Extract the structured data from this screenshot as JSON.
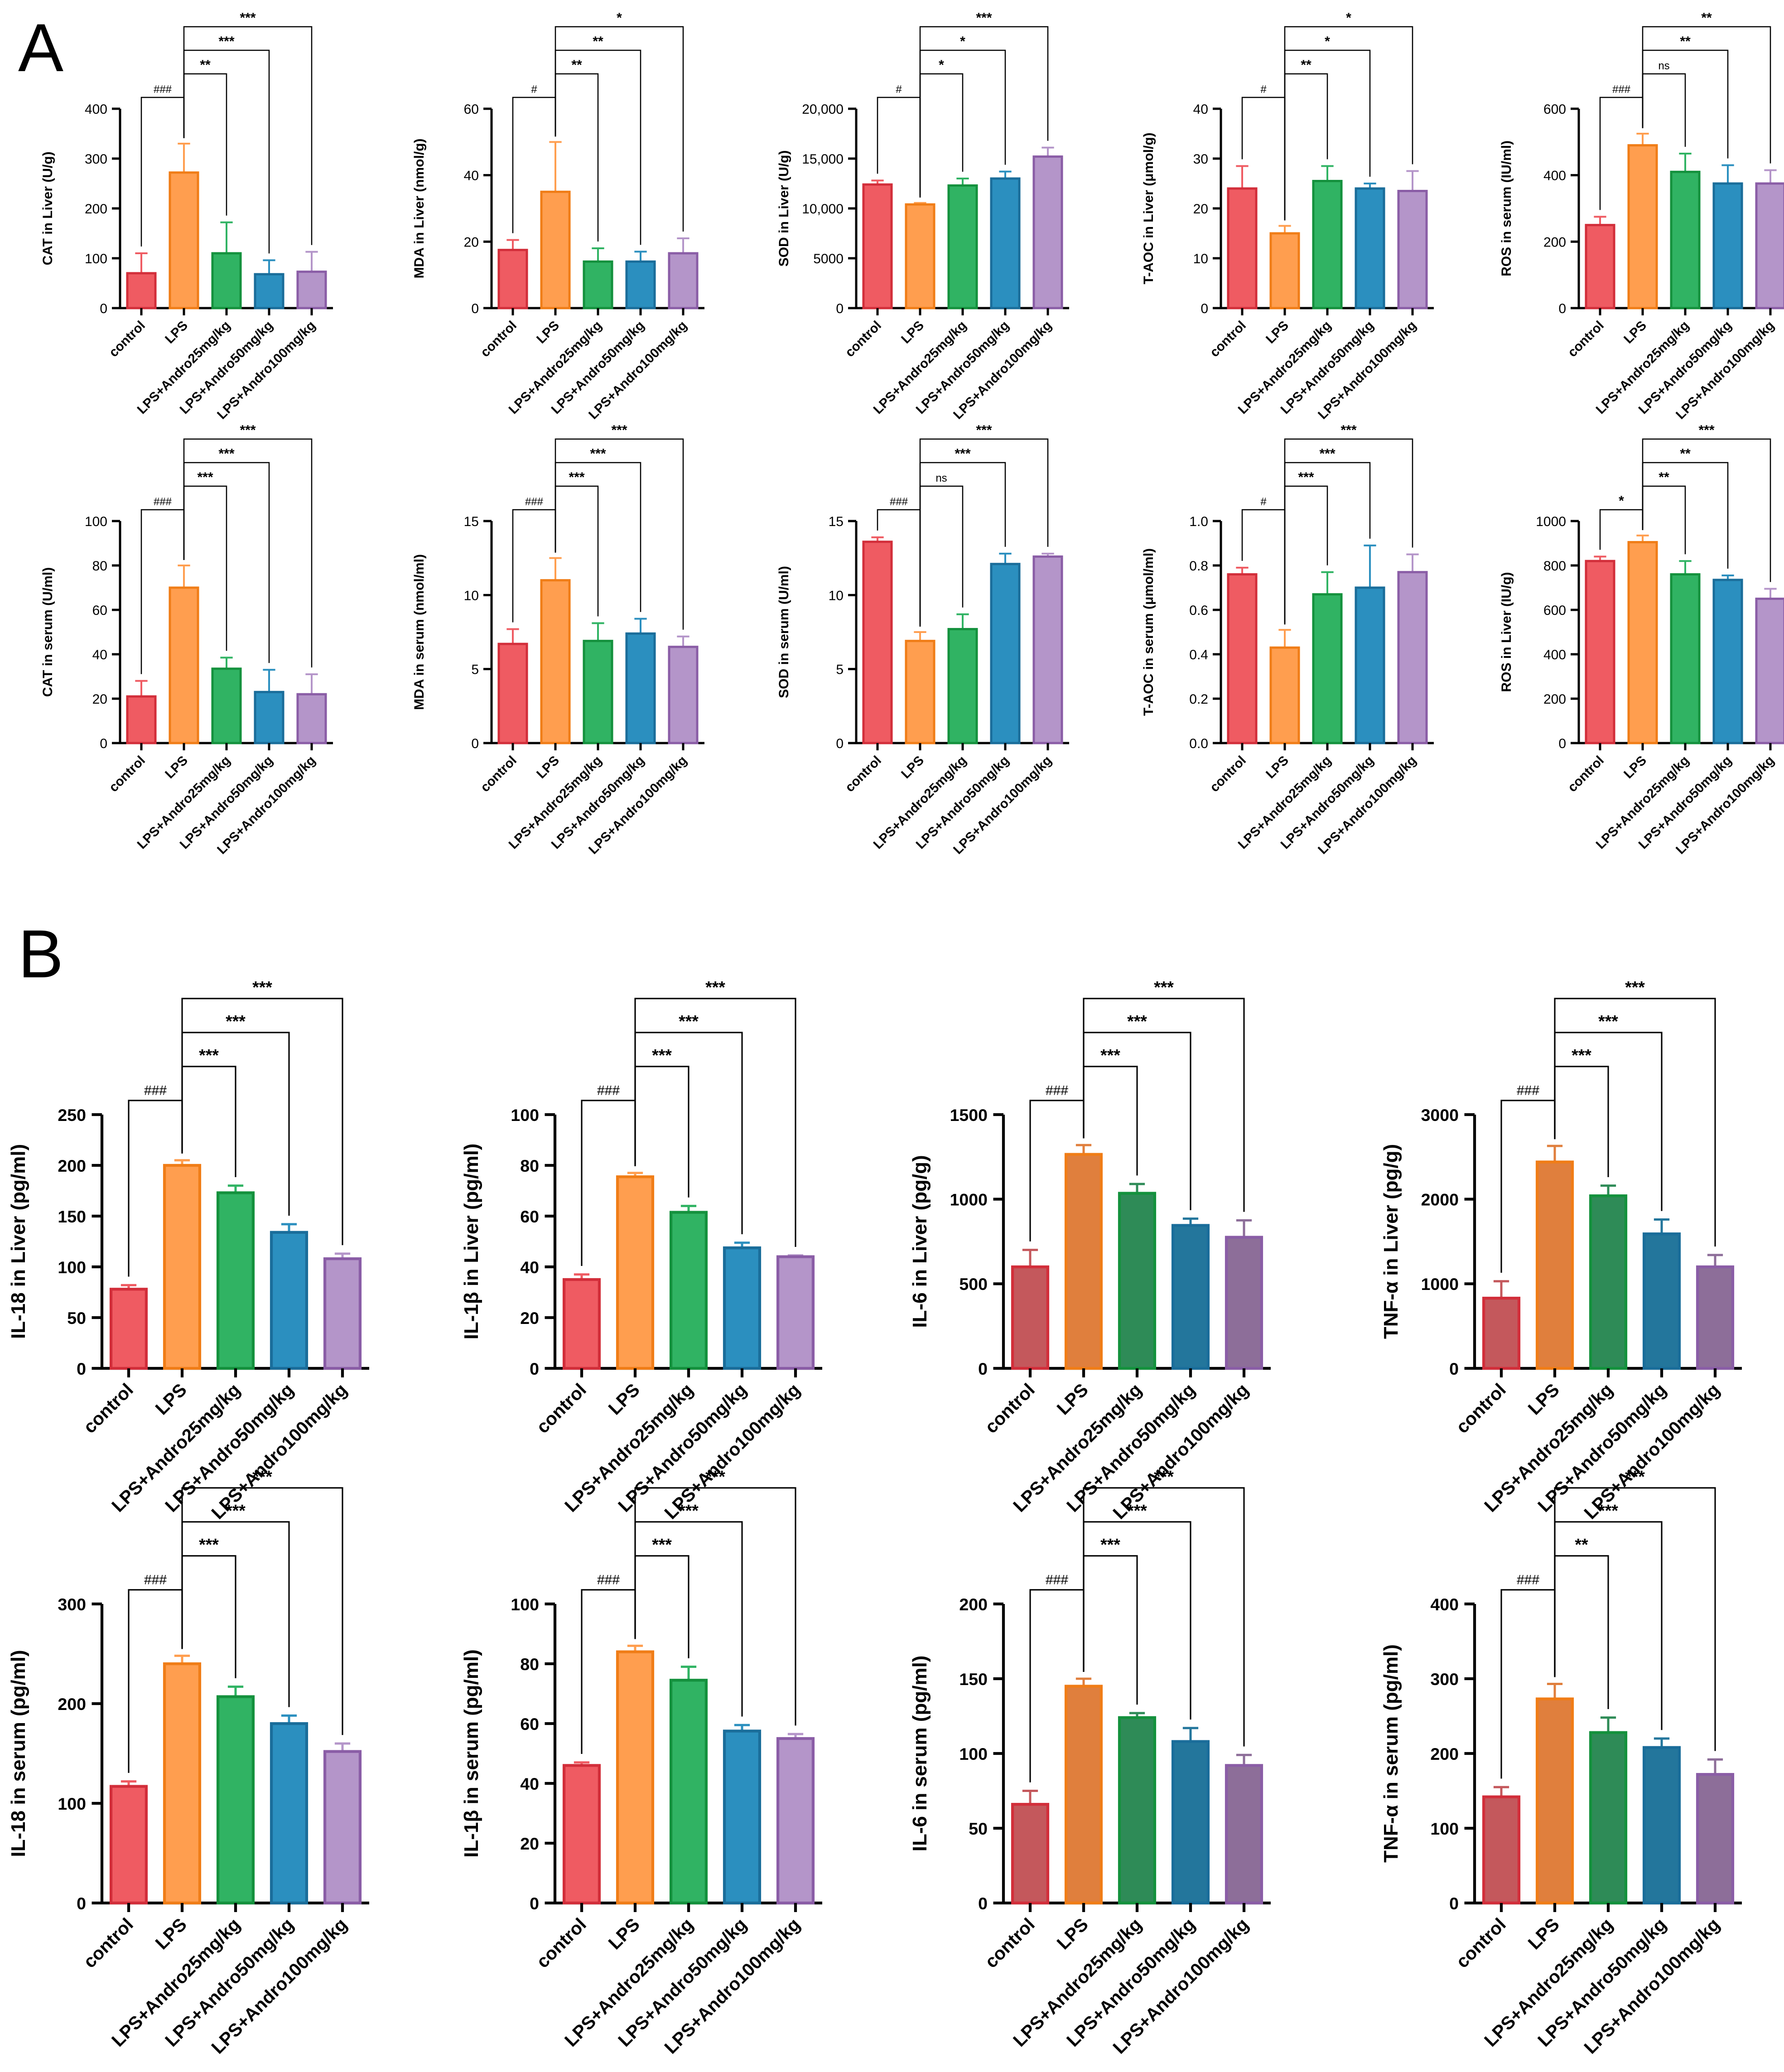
{
  "panels": [
    {
      "label": "A"
    },
    {
      "label": "B"
    }
  ],
  "palette": {
    "bright": [
      "#EF5B62",
      "#FF9E4F",
      "#30B363",
      "#2B8FBF",
      "#B495C9"
    ],
    "dark": [
      "#C4585C",
      "#E07F3D",
      "#2E8B57",
      "#23769C",
      "#8D6E99"
    ],
    "edge": [
      "#D22E3A",
      "#F07D17",
      "#14913D",
      "#1A6D9A",
      "#8A5DA6"
    ]
  },
  "chart_data": [
    {
      "type": "bar",
      "ylabel": "CAT in Liver (U/g)",
      "categories": [
        "control",
        "LPS",
        "LPS+Andro25mg/kg",
        "LPS+Andro50mg/kg",
        "LPS+Andro100mg/kg"
      ],
      "values": [
        70,
        272,
        110,
        68,
        73
      ],
      "errors": [
        40,
        58,
        62,
        28,
        40
      ],
      "ylim": [
        0,
        400
      ],
      "yticks": [
        0,
        100,
        200,
        300,
        400
      ],
      "significance": [
        {
          "from": 0,
          "to": 1,
          "label": "###"
        },
        {
          "from": 1,
          "to": 2,
          "label": "**"
        },
        {
          "from": 1,
          "to": 3,
          "label": "***"
        },
        {
          "from": 1,
          "to": 4,
          "label": "***"
        }
      ]
    },
    {
      "type": "bar",
      "ylabel": "MDA in Liver (nmol/g)",
      "categories": [
        "control",
        "LPS",
        "LPS+Andro25mg/kg",
        "LPS+Andro50mg/kg",
        "LPS+Andro100mg/kg"
      ],
      "values": [
        17.5,
        35,
        14,
        14,
        16.5
      ],
      "errors": [
        3,
        15,
        4,
        3,
        4.5
      ],
      "ylim": [
        0,
        60
      ],
      "yticks": [
        0,
        20,
        40,
        60
      ],
      "significance": [
        {
          "from": 0,
          "to": 1,
          "label": "#"
        },
        {
          "from": 1,
          "to": 2,
          "label": "**"
        },
        {
          "from": 1,
          "to": 3,
          "label": "**"
        },
        {
          "from": 1,
          "to": 4,
          "label": "*"
        }
      ]
    },
    {
      "type": "bar",
      "ylabel": "SOD in Liver (U/g)",
      "categories": [
        "control",
        "LPS",
        "LPS+Andro25mg/kg",
        "LPS+Andro50mg/kg",
        "LPS+Andro100mg/kg"
      ],
      "values": [
        12400,
        10400,
        12300,
        13000,
        15200
      ],
      "errors": [
        400,
        150,
        700,
        700,
        900
      ],
      "ylim": [
        0,
        20000
      ],
      "yticks": [
        0,
        5000,
        10000,
        15000,
        20000
      ],
      "ytick_labels": [
        "0",
        "5000",
        "10,000",
        "15,000",
        "20,000"
      ],
      "significance": [
        {
          "from": 0,
          "to": 1,
          "label": "#"
        },
        {
          "from": 1,
          "to": 2,
          "label": "*"
        },
        {
          "from": 1,
          "to": 3,
          "label": "*"
        },
        {
          "from": 1,
          "to": 4,
          "label": "***"
        }
      ]
    },
    {
      "type": "bar",
      "ylabel": "T-AOC in Liver (μmol/g)",
      "categories": [
        "control",
        "LPS",
        "LPS+Andro25mg/kg",
        "LPS+Andro50mg/kg",
        "LPS+Andro100mg/kg"
      ],
      "values": [
        24,
        15,
        25.5,
        24,
        23.5
      ],
      "errors": [
        4.5,
        1.5,
        3,
        1,
        4
      ],
      "ylim": [
        0,
        40
      ],
      "yticks": [
        0,
        10,
        20,
        30,
        40
      ],
      "significance": [
        {
          "from": 0,
          "to": 1,
          "label": "#"
        },
        {
          "from": 1,
          "to": 2,
          "label": "**"
        },
        {
          "from": 1,
          "to": 3,
          "label": "*"
        },
        {
          "from": 1,
          "to": 4,
          "label": "*"
        }
      ]
    },
    {
      "type": "bar",
      "ylabel": "ROS in serum (IU/ml)",
      "categories": [
        "control",
        "LPS",
        "LPS+Andro25mg/kg",
        "LPS+Andro50mg/kg",
        "LPS+Andro100mg/kg"
      ],
      "values": [
        250,
        490,
        410,
        375,
        375
      ],
      "errors": [
        25,
        35,
        55,
        55,
        40
      ],
      "ylim": [
        0,
        600
      ],
      "yticks": [
        0,
        200,
        400,
        600
      ],
      "significance": [
        {
          "from": 0,
          "to": 1,
          "label": "###"
        },
        {
          "from": 1,
          "to": 2,
          "label": "ns"
        },
        {
          "from": 1,
          "to": 3,
          "label": "**"
        },
        {
          "from": 1,
          "to": 4,
          "label": "**"
        }
      ]
    },
    {
      "type": "bar",
      "ylabel": "CAT in serum (U/ml)",
      "categories": [
        "control",
        "LPS",
        "LPS+Andro25mg/kg",
        "LPS+Andro50mg/kg",
        "LPS+Andro100mg/kg"
      ],
      "values": [
        21,
        70,
        33.5,
        23,
        22
      ],
      "errors": [
        7,
        10,
        5,
        10,
        9
      ],
      "ylim": [
        0,
        100
      ],
      "yticks": [
        0,
        20,
        40,
        60,
        80,
        100
      ],
      "significance": [
        {
          "from": 0,
          "to": 1,
          "label": "###"
        },
        {
          "from": 1,
          "to": 2,
          "label": "***"
        },
        {
          "from": 1,
          "to": 3,
          "label": "***"
        },
        {
          "from": 1,
          "to": 4,
          "label": "***"
        }
      ]
    },
    {
      "type": "bar",
      "ylabel": "MDA in serum (nmol/ml)",
      "categories": [
        "control",
        "LPS",
        "LPS+Andro25mg/kg",
        "LPS+Andro50mg/kg",
        "LPS+Andro100mg/kg"
      ],
      "values": [
        6.7,
        11,
        6.9,
        7.4,
        6.5
      ],
      "errors": [
        1,
        1.5,
        1.2,
        1,
        0.7
      ],
      "ylim": [
        0,
        15
      ],
      "yticks": [
        0,
        5,
        10,
        15
      ],
      "significance": [
        {
          "from": 0,
          "to": 1,
          "label": "###"
        },
        {
          "from": 1,
          "to": 2,
          "label": "***"
        },
        {
          "from": 1,
          "to": 3,
          "label": "***"
        },
        {
          "from": 1,
          "to": 4,
          "label": "***"
        }
      ]
    },
    {
      "type": "bar",
      "ylabel": "SOD in serum (U/ml)",
      "categories": [
        "control",
        "LPS",
        "LPS+Andro25mg/kg",
        "LPS+Andro50mg/kg",
        "LPS+Andro100mg/kg"
      ],
      "values": [
        13.6,
        6.9,
        7.7,
        12.1,
        12.6
      ],
      "errors": [
        0.3,
        0.6,
        1,
        0.7,
        0.2
      ],
      "ylim": [
        0,
        15
      ],
      "yticks": [
        0,
        5,
        10,
        15
      ],
      "significance": [
        {
          "from": 0,
          "to": 1,
          "label": "###"
        },
        {
          "from": 1,
          "to": 2,
          "label": "ns"
        },
        {
          "from": 1,
          "to": 3,
          "label": "***"
        },
        {
          "from": 1,
          "to": 4,
          "label": "***"
        }
      ]
    },
    {
      "type": "bar",
      "ylabel": "T-AOC in serum (μmol/ml)",
      "categories": [
        "control",
        "LPS",
        "LPS+Andro25mg/kg",
        "LPS+Andro50mg/kg",
        "LPS+Andro100mg/kg"
      ],
      "values": [
        0.76,
        0.43,
        0.67,
        0.7,
        0.77
      ],
      "errors": [
        0.03,
        0.08,
        0.1,
        0.19,
        0.08
      ],
      "ylim": [
        0,
        1
      ],
      "yticks": [
        0,
        0.2,
        0.4,
        0.6,
        0.8,
        1
      ],
      "ytick_labels": [
        "0.0",
        "0.2",
        "0.4",
        "0.6",
        "0.8",
        "1.0"
      ],
      "significance": [
        {
          "from": 0,
          "to": 1,
          "label": "#"
        },
        {
          "from": 1,
          "to": 2,
          "label": "***"
        },
        {
          "from": 1,
          "to": 3,
          "label": "***"
        },
        {
          "from": 1,
          "to": 4,
          "label": "***"
        }
      ]
    },
    {
      "type": "bar",
      "ylabel": "ROS in Liver (IU/g)",
      "categories": [
        "control",
        "LPS",
        "LPS+Andro25mg/kg",
        "LPS+Andro50mg/kg",
        "LPS+Andro100mg/kg"
      ],
      "values": [
        820,
        905,
        760,
        735,
        650
      ],
      "errors": [
        20,
        30,
        60,
        20,
        45
      ],
      "ylim": [
        0,
        1000
      ],
      "yticks": [
        0,
        200,
        400,
        600,
        800,
        1000
      ],
      "significance": [
        {
          "from": 0,
          "to": 1,
          "label": "*"
        },
        {
          "from": 1,
          "to": 2,
          "label": "**"
        },
        {
          "from": 1,
          "to": 3,
          "label": "**"
        },
        {
          "from": 1,
          "to": 4,
          "label": "***"
        }
      ]
    },
    {
      "type": "bar",
      "ylabel": "IL-18 in Liver (pg/ml)",
      "categories": [
        "control",
        "LPS",
        "LPS+Andro25mg/kg",
        "LPS+Andro50mg/kg",
        "LPS+Andro100mg/kg"
      ],
      "values": [
        78,
        200,
        173,
        134,
        108
      ],
      "errors": [
        4,
        5,
        7,
        8,
        5
      ],
      "ylim": [
        0,
        250
      ],
      "yticks": [
        0,
        50,
        100,
        150,
        200,
        250
      ],
      "significance": [
        {
          "from": 0,
          "to": 1,
          "label": "###"
        },
        {
          "from": 1,
          "to": 2,
          "label": "***"
        },
        {
          "from": 1,
          "to": 3,
          "label": "***"
        },
        {
          "from": 1,
          "to": 4,
          "label": "***"
        }
      ]
    },
    {
      "type": "bar",
      "ylabel": "IL-1β in Liver  (pg/ml)",
      "categories": [
        "control",
        "LPS",
        "LPS+Andro25mg/kg",
        "LPS+Andro50mg/kg",
        "LPS+Andro100mg/kg"
      ],
      "values": [
        35,
        75.5,
        61.5,
        47.5,
        44
      ],
      "errors": [
        2,
        1.5,
        2.5,
        2,
        0.5
      ],
      "ylim": [
        0,
        100
      ],
      "yticks": [
        0,
        20,
        40,
        60,
        80,
        100
      ],
      "significance": [
        {
          "from": 0,
          "to": 1,
          "label": "###"
        },
        {
          "from": 1,
          "to": 2,
          "label": "***"
        },
        {
          "from": 1,
          "to": 3,
          "label": "***"
        },
        {
          "from": 1,
          "to": 4,
          "label": "***"
        }
      ]
    },
    {
      "type": "bar",
      "ylabel": "IL-6 in Liver (pg/g)",
      "categories": [
        "control",
        "LPS",
        "LPS+Andro25mg/kg",
        "LPS+Andro50mg/kg",
        "LPS+Andro100mg/kg"
      ],
      "values": [
        600,
        1265,
        1035,
        845,
        775
      ],
      "errors": [
        100,
        55,
        55,
        40,
        100
      ],
      "ylim": [
        0,
        1500
      ],
      "yticks": [
        0,
        500,
        1000,
        1500
      ],
      "significance": [
        {
          "from": 0,
          "to": 1,
          "label": "###"
        },
        {
          "from": 1,
          "to": 2,
          "label": "***"
        },
        {
          "from": 1,
          "to": 3,
          "label": "***"
        },
        {
          "from": 1,
          "to": 4,
          "label": "***"
        }
      ]
    },
    {
      "type": "bar",
      "ylabel": "TNF-α in Liver (pg/g)",
      "categories": [
        "control",
        "LPS",
        "LPS+Andro25mg/kg",
        "LPS+Andro50mg/kg",
        "LPS+Andro100mg/kg"
      ],
      "values": [
        830,
        2440,
        2040,
        1590,
        1200
      ],
      "errors": [
        200,
        190,
        120,
        170,
        140
      ],
      "ylim": [
        0,
        3000
      ],
      "yticks": [
        0,
        1000,
        2000,
        3000
      ],
      "significance": [
        {
          "from": 0,
          "to": 1,
          "label": "###"
        },
        {
          "from": 1,
          "to": 2,
          "label": "***"
        },
        {
          "from": 1,
          "to": 3,
          "label": "***"
        },
        {
          "from": 1,
          "to": 4,
          "label": "***"
        }
      ]
    },
    {
      "type": "bar",
      "ylabel": "IL-18 in serum  (pg/ml)",
      "categories": [
        "control",
        "LPS",
        "LPS+Andro25mg/kg",
        "LPS+Andro50mg/kg",
        "LPS+Andro100mg/kg"
      ],
      "values": [
        117,
        240,
        207,
        180,
        152
      ],
      "errors": [
        5,
        8,
        10,
        8,
        8
      ],
      "ylim": [
        0,
        300
      ],
      "yticks": [
        0,
        100,
        200,
        300
      ],
      "significance": [
        {
          "from": 0,
          "to": 1,
          "label": "###"
        },
        {
          "from": 1,
          "to": 2,
          "label": "***"
        },
        {
          "from": 1,
          "to": 3,
          "label": "***"
        },
        {
          "from": 1,
          "to": 4,
          "label": "***"
        }
      ]
    },
    {
      "type": "bar",
      "ylabel": "IL-1β in serum  (pg/ml)",
      "categories": [
        "control",
        "LPS",
        "LPS+Andro25mg/kg",
        "LPS+Andro50mg/kg",
        "LPS+Andro100mg/kg"
      ],
      "values": [
        46,
        84,
        74.5,
        57.5,
        55
      ],
      "errors": [
        1,
        2,
        4.5,
        2,
        1.5
      ],
      "ylim": [
        0,
        100
      ],
      "yticks": [
        0,
        20,
        40,
        60,
        80,
        100
      ],
      "significance": [
        {
          "from": 0,
          "to": 1,
          "label": "###"
        },
        {
          "from": 1,
          "to": 2,
          "label": "***"
        },
        {
          "from": 1,
          "to": 3,
          "label": "***"
        },
        {
          "from": 1,
          "to": 4,
          "label": "***"
        }
      ]
    },
    {
      "type": "bar",
      "ylabel": "IL-6 in serum (pg/ml)",
      "categories": [
        "control",
        "LPS",
        "LPS+Andro25mg/kg",
        "LPS+Andro50mg/kg",
        "LPS+Andro100mg/kg"
      ],
      "values": [
        66,
        145,
        124,
        108,
        92
      ],
      "errors": [
        9,
        5,
        3,
        9,
        7
      ],
      "ylim": [
        0,
        200
      ],
      "yticks": [
        0,
        50,
        100,
        150,
        200
      ],
      "significance": [
        {
          "from": 0,
          "to": 1,
          "label": "###"
        },
        {
          "from": 1,
          "to": 2,
          "label": "***"
        },
        {
          "from": 1,
          "to": 3,
          "label": "***"
        },
        {
          "from": 1,
          "to": 4,
          "label": "***"
        }
      ]
    },
    {
      "type": "bar",
      "ylabel": "TNF-α in serum (pg/ml)",
      "categories": [
        "control",
        "LPS",
        "LPS+Andro25mg/kg",
        "LPS+Andro50mg/kg",
        "LPS+Andro100mg/kg"
      ],
      "values": [
        142,
        273,
        228,
        208,
        172
      ],
      "errors": [
        13,
        20,
        20,
        12,
        20
      ],
      "ylim": [
        0,
        400
      ],
      "yticks": [
        0,
        100,
        200,
        300,
        400
      ],
      "significance": [
        {
          "from": 0,
          "to": 1,
          "label": "###"
        },
        {
          "from": 1,
          "to": 2,
          "label": "**"
        },
        {
          "from": 1,
          "to": 3,
          "label": "***"
        },
        {
          "from": 1,
          "to": 4,
          "label": "***"
        }
      ]
    }
  ]
}
